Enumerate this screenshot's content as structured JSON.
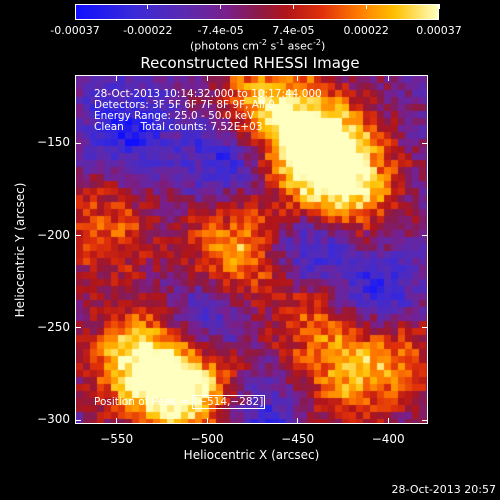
{
  "colorbar": {
    "ticks": [
      "-0.00037",
      "-0.00022",
      "-7.4e-05",
      "7.4e-05",
      "0.00022",
      "0.00037"
    ],
    "units_text": "(photons cm",
    "units_sup1": "-2",
    "units_mid": " s",
    "units_sup2": "-1",
    "units_end": " asec",
    "units_sup3": "-2",
    "units_close": ")"
  },
  "chart_data": {
    "type": "heatmap",
    "title": "Reconstructed RHESSI Image",
    "xlabel": "Heliocentric X (arcsec)",
    "ylabel": "Heliocentric Y (arcsec)",
    "xlim": [
      -573,
      -378
    ],
    "ylim": [
      -302,
      -113
    ],
    "xticks": [
      -550,
      -500,
      -450,
      -400
    ],
    "xtick_labels": [
      "−550",
      "−500",
      "−450",
      "−400"
    ],
    "yticks": [
      -150,
      -200,
      -250,
      -300
    ],
    "ytick_labels": [
      "−150",
      "−200",
      "−250",
      "−300"
    ],
    "colorbar_range": [
      -0.00037,
      0.00037
    ],
    "peak": [
      -514,
      -282
    ],
    "hotspots": [
      {
        "x": -438,
        "y": -150,
        "intensity": 1.0
      },
      {
        "x": -470,
        "y": -128,
        "intensity": 0.8
      },
      {
        "x": -425,
        "y": -175,
        "intensity": 0.75
      },
      {
        "x": -485,
        "y": -205,
        "intensity": 0.75
      },
      {
        "x": -540,
        "y": -265,
        "intensity": 0.85
      },
      {
        "x": -514,
        "y": -282,
        "intensity": 1.0
      },
      {
        "x": -560,
        "y": -195,
        "intensity": 0.55
      },
      {
        "x": -440,
        "y": -240,
        "intensity": 0.5
      },
      {
        "x": -400,
        "y": -265,
        "intensity": 0.55
      },
      {
        "x": -430,
        "y": -280,
        "intensity": 0.45
      }
    ],
    "coldspots": [
      {
        "x": -490,
        "y": -155,
        "intensity": -0.6
      },
      {
        "x": -445,
        "y": -205,
        "intensity": -0.7
      },
      {
        "x": -410,
        "y": -230,
        "intensity": -0.6
      },
      {
        "x": -545,
        "y": -140,
        "intensity": -0.5
      },
      {
        "x": -505,
        "y": -245,
        "intensity": -0.55
      },
      {
        "x": -470,
        "y": -295,
        "intensity": -0.45
      }
    ]
  },
  "annotations": {
    "line1": "28-Oct-2013 10:14:32.000 to 10:17:44.000",
    "line2": "Detectors: 3F 5F 6F 7F 8F 9F, All 0",
    "line3": "Energy Range: 25.0 - 50.0 keV",
    "line4": "Clean     Total counts: 7.52E+03",
    "peak_label": "Position of Peak = ",
    "peak_value": "[−514,−282]"
  },
  "timestamp": "28-Oct-2013 20:57"
}
